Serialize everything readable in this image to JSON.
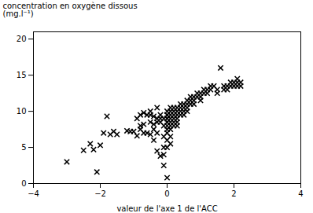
{
  "chart_data": {
    "type": "scatter",
    "xlabel": "valeur de l'axe 1 de l'ACC",
    "ylabel": "concentration en oxygène dissous\n(mg.l⁻¹)",
    "xlim": [
      -4,
      4
    ],
    "ylim": [
      0,
      21
    ],
    "xticks": [
      -4,
      -2,
      0,
      2,
      4
    ],
    "yticks": [
      0,
      5,
      10,
      15,
      20
    ],
    "marker": "x",
    "color": "black",
    "x": [
      -3.0,
      -2.5,
      -2.3,
      -2.2,
      -2.1,
      -2.0,
      -1.9,
      -1.8,
      -1.7,
      -1.6,
      -1.5,
      -1.2,
      -1.1,
      -1.0,
      -0.9,
      -0.9,
      -0.8,
      -0.8,
      -0.8,
      -0.7,
      -0.7,
      -0.7,
      -0.6,
      -0.6,
      -0.5,
      -0.5,
      -0.5,
      -0.5,
      -0.4,
      -0.4,
      -0.4,
      -0.4,
      -0.3,
      -0.3,
      -0.3,
      -0.3,
      -0.3,
      -0.2,
      -0.2,
      -0.2,
      -0.2,
      -0.1,
      -0.1,
      -0.1,
      -0.1,
      -0.1,
      -0.1,
      0.0,
      0.0,
      0.0,
      0.0,
      0.0,
      0.0,
      0.0,
      0.0,
      0.0,
      0.0,
      0.0,
      0.0,
      0.0,
      0.1,
      0.1,
      0.1,
      0.1,
      0.1,
      0.1,
      0.1,
      0.1,
      0.1,
      0.2,
      0.2,
      0.2,
      0.2,
      0.2,
      0.2,
      0.3,
      0.3,
      0.3,
      0.3,
      0.3,
      0.3,
      0.4,
      0.4,
      0.4,
      0.4,
      0.5,
      0.5,
      0.5,
      0.5,
      0.6,
      0.6,
      0.6,
      0.6,
      0.7,
      0.7,
      0.7,
      0.8,
      0.8,
      0.8,
      0.9,
      0.9,
      1.0,
      1.0,
      1.0,
      1.1,
      1.1,
      1.2,
      1.2,
      1.3,
      1.3,
      1.4,
      1.5,
      1.5,
      1.6,
      1.7,
      1.7,
      1.8,
      1.8,
      1.9,
      1.9,
      2.0,
      2.0,
      2.1,
      2.1,
      2.1,
      2.2,
      2.2
    ],
    "values": [
      3.0,
      4.6,
      5.5,
      4.7,
      1.6,
      5.3,
      7.0,
      9.3,
      6.8,
      7.2,
      6.8,
      7.3,
      7.2,
      7.2,
      6.6,
      9.0,
      7.5,
      9.5,
      8.0,
      8.2,
      7.0,
      9.8,
      7.0,
      9.5,
      6.8,
      10.0,
      9.5,
      8.5,
      8.2,
      9.3,
      7.5,
      6.0,
      7.0,
      9.0,
      10.5,
      8.5,
      4.5,
      8.5,
      9.5,
      9.0,
      3.8,
      9.0,
      8.0,
      6.5,
      5.0,
      4.0,
      2.5,
      9.5,
      9.0,
      8.5,
      8.0,
      7.0,
      6.0,
      5.0,
      0.8,
      9.5,
      10.0,
      9.0,
      8.5,
      7.5,
      9.5,
      10.0,
      10.5,
      9.0,
      8.5,
      8.0,
      7.5,
      6.5,
      5.5,
      9.5,
      10.5,
      10.0,
      9.0,
      8.5,
      8.0,
      10.5,
      10.0,
      9.5,
      9.0,
      8.5,
      8.0,
      11.0,
      10.5,
      10.0,
      9.5,
      11.0,
      10.5,
      10.0,
      9.5,
      11.5,
      11.0,
      10.5,
      10.0,
      12.0,
      11.5,
      11.0,
      12.0,
      11.5,
      11.0,
      12.5,
      12.0,
      12.5,
      12.0,
      11.5,
      13.0,
      12.5,
      13.0,
      12.5,
      13.0,
      13.5,
      13.5,
      13.0,
      12.5,
      16.0,
      13.5,
      13.0,
      13.5,
      13.0,
      14.0,
      13.5,
      14.0,
      13.5,
      14.5,
      14.0,
      13.5,
      14.0,
      13.5
    ]
  }
}
